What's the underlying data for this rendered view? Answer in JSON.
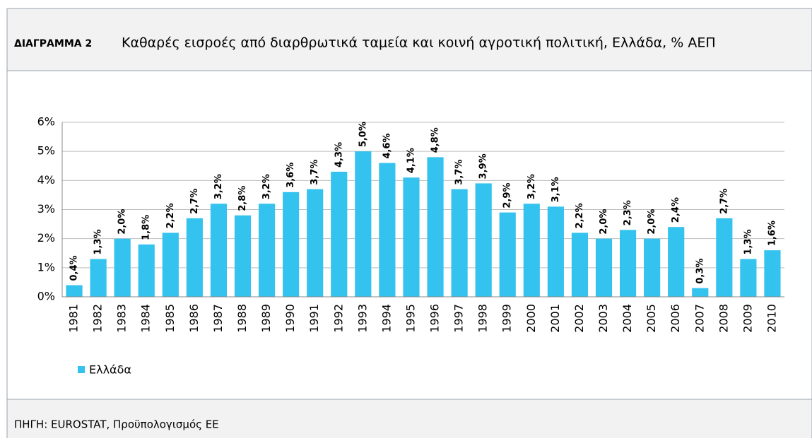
{
  "label": "ΔΙΑΓΡΑΜΜΑ 2",
  "title": "Καθαρές εισροές από διαρθρωτικά ταμεία και κοινή αγροτική πολιτική, Ελλάδα, % ΑΕΠ",
  "source": "ΠΗΓΗ: EUROSTAT, Προϋπολογισμός ΕΕ",
  "chart_data": {
    "type": "bar",
    "categories": [
      "1981",
      "1982",
      "1983",
      "1984",
      "1985",
      "1986",
      "1987",
      "1988",
      "1989",
      "1990",
      "1991",
      "1992",
      "1993",
      "1994",
      "1995",
      "1996",
      "1997",
      "1998",
      "1999",
      "2000",
      "2001",
      "2002",
      "2003",
      "2004",
      "2005",
      "2006",
      "2007",
      "2008",
      "2009",
      "2010"
    ],
    "series": [
      {
        "name": "Ελλάδα",
        "color": "#33c3ee",
        "values": [
          0.4,
          1.3,
          2.0,
          1.8,
          2.2,
          2.7,
          3.2,
          2.8,
          3.2,
          3.6,
          3.7,
          4.3,
          5.0,
          4.6,
          4.1,
          4.8,
          3.7,
          3.9,
          2.9,
          3.2,
          3.1,
          2.2,
          2.0,
          2.3,
          2.0,
          2.4,
          0.3,
          2.7,
          1.3,
          1.6
        ],
        "value_labels": [
          "0,4%",
          "1,3%",
          "2,0%",
          "1,8%",
          "2,2%",
          "2,7%",
          "3,2%",
          "2,8%",
          "3,2%",
          "3,6%",
          "3,7%",
          "4,3%",
          "5,0%",
          "4,6%",
          "4,1%",
          "4,8%",
          "3,7%",
          "3,9%",
          "2,9%",
          "3,2%",
          "3,1%",
          "2,2%",
          "2,0%",
          "2,3%",
          "2,0%",
          "2,4%",
          "0,3%",
          "2,7%",
          "1,3%",
          "1,6%"
        ]
      }
    ],
    "ylim": [
      0,
      6
    ],
    "yticks": [
      {
        "value": 0,
        "label": "0%"
      },
      {
        "value": 1,
        "label": "1%"
      },
      {
        "value": 2,
        "label": "2%"
      },
      {
        "value": 3,
        "label": "3%"
      },
      {
        "value": 4,
        "label": "4%"
      },
      {
        "value": 5,
        "label": "5%"
      },
      {
        "value": 6,
        "label": "6%"
      }
    ],
    "grid": true,
    "legend": "bottom-left"
  }
}
